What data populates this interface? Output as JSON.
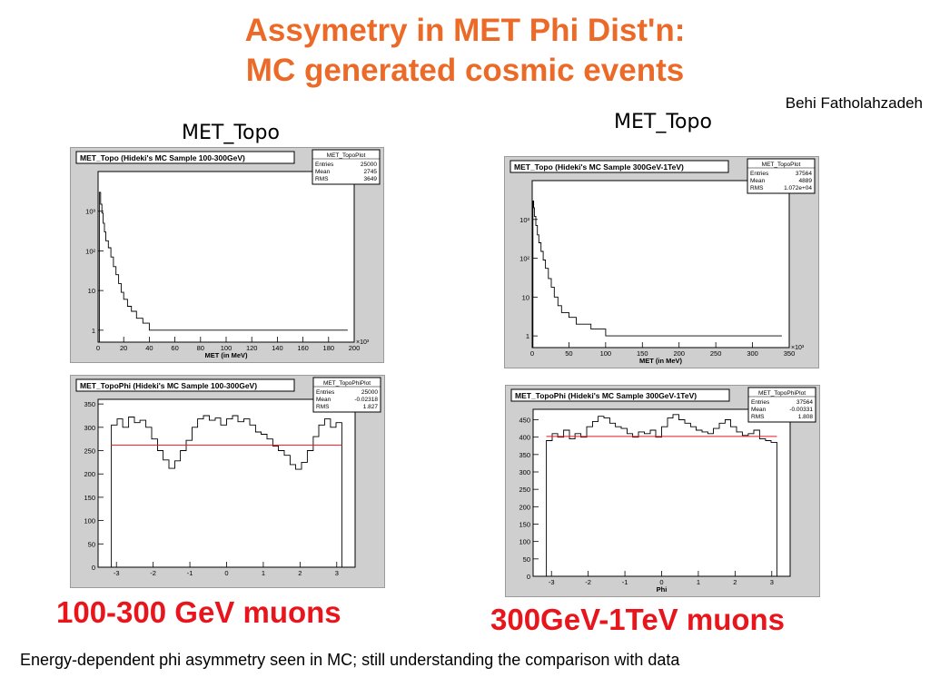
{
  "slide": {
    "title_line1": "Assymetry in MET Phi Dist'n:",
    "title_line2": "MC generated cosmic events",
    "author": "Behi Fatholahzadeh",
    "panel_left_label": "MET_Topo",
    "panel_right_label": "MET_Topo",
    "caption_left": "100-300 GeV muons",
    "caption_right": "300GeV-1TeV muons",
    "footer": "Energy-dependent phi asymmetry seen in MC; still understanding the comparison with data"
  },
  "colors": {
    "title": "#ec6a28",
    "caption": "#e8161c",
    "fit_line": "#e8161c",
    "frame_bg": "#cfcfcf",
    "plot_bg": "#ffffff"
  },
  "chart_data": [
    {
      "id": "met1",
      "type": "line",
      "title": "MET_Topo (Hideki's MC Sample 100-300GeV)",
      "stats_title": "MET_TopoPlot",
      "stats": [
        [
          "Entries",
          "25000"
        ],
        [
          "Mean",
          "2745"
        ],
        [
          "RMS",
          "3649"
        ]
      ],
      "xlabel": "MET (in MeV)",
      "x_multiplier": "×10³",
      "xlim": [
        0,
        200
      ],
      "ylog": true,
      "ylim": [
        0.5,
        10000
      ],
      "xticks": [
        0,
        20,
        40,
        60,
        80,
        100,
        120,
        140,
        160,
        180,
        200
      ],
      "yticks": [
        {
          "v": 1,
          "label": "1"
        },
        {
          "v": 10,
          "label": "10"
        },
        {
          "v": 100,
          "label": "10²"
        },
        {
          "v": 1000,
          "label": "10³"
        }
      ],
      "x": [
        1,
        2,
        3,
        4,
        5,
        6,
        8,
        10,
        12,
        14,
        16,
        18,
        20,
        23,
        26,
        30,
        35,
        40,
        50,
        60,
        70,
        80,
        100,
        120,
        140,
        160,
        180,
        195
      ],
      "y": [
        3000,
        1500,
        900,
        500,
        300,
        180,
        120,
        70,
        40,
        25,
        15,
        9,
        6,
        4,
        3,
        2,
        1.5,
        1,
        1,
        1,
        1,
        1,
        1,
        1,
        1,
        1,
        1,
        1
      ]
    },
    {
      "id": "met2",
      "type": "line",
      "title": "MET_Topo (Hideki's MC Sample 300GeV-1TeV)",
      "stats_title": "MET_TopoPlot",
      "stats": [
        [
          "Entries",
          "37564"
        ],
        [
          "Mean",
          "4889"
        ],
        [
          "RMS",
          "1.072e+04"
        ]
      ],
      "xlabel": "MET (in MeV)",
      "x_multiplier": "×10³",
      "xlim": [
        0,
        350
      ],
      "ylog": true,
      "ylim": [
        0.5,
        10000
      ],
      "xticks": [
        0,
        50,
        100,
        150,
        200,
        250,
        300,
        350
      ],
      "yticks": [
        {
          "v": 1,
          "label": "1"
        },
        {
          "v": 10,
          "label": "10"
        },
        {
          "v": 100,
          "label": "10²"
        },
        {
          "v": 1000,
          "label": "10³"
        }
      ],
      "x": [
        1,
        2,
        3,
        5,
        7,
        9,
        12,
        15,
        18,
        22,
        26,
        30,
        35,
        40,
        50,
        60,
        80,
        100,
        130,
        160,
        200,
        250,
        300,
        340
      ],
      "y": [
        3000,
        2000,
        1200,
        700,
        400,
        250,
        150,
        90,
        55,
        30,
        18,
        10,
        6,
        4,
        3,
        2,
        1.5,
        1,
        1,
        1,
        1,
        1,
        1,
        1
      ]
    },
    {
      "id": "phi1",
      "type": "line",
      "title": "MET_TopoPhi (Hideki's MC Sample 100-300GeV)",
      "stats_title": "MET_TopoPhiPlot",
      "stats": [
        [
          "Entries",
          "25000"
        ],
        [
          "Mean",
          "-0.02318"
        ],
        [
          "RMS",
          "1.827"
        ]
      ],
      "xlabel": "",
      "xlim": [
        -3.5,
        3.5
      ],
      "ylim": [
        0,
        360
      ],
      "xticks": [
        -3,
        -2,
        -1,
        0,
        1,
        2,
        3
      ],
      "yticks": [
        {
          "v": 0,
          "label": "0"
        },
        {
          "v": 50,
          "label": "50"
        },
        {
          "v": 100,
          "label": "100"
        },
        {
          "v": 150,
          "label": "150"
        },
        {
          "v": 200,
          "label": "200"
        },
        {
          "v": 250,
          "label": "250"
        },
        {
          "v": 300,
          "label": "300"
        },
        {
          "v": 350,
          "label": "350"
        }
      ],
      "fit": 262,
      "x": [
        -3.14,
        -2.98,
        -2.83,
        -2.67,
        -2.51,
        -2.36,
        -2.2,
        -2.04,
        -1.88,
        -1.73,
        -1.57,
        -1.41,
        -1.26,
        -1.1,
        -0.94,
        -0.79,
        -0.63,
        -0.47,
        -0.31,
        -0.16,
        0,
        0.16,
        0.31,
        0.47,
        0.63,
        0.79,
        0.94,
        1.1,
        1.26,
        1.41,
        1.57,
        1.73,
        1.88,
        2.04,
        2.2,
        2.36,
        2.51,
        2.67,
        2.83,
        2.98,
        3.14
      ],
      "y": [
        305,
        318,
        300,
        322,
        310,
        315,
        300,
        275,
        250,
        230,
        212,
        228,
        250,
        272,
        300,
        318,
        325,
        315,
        320,
        305,
        318,
        325,
        312,
        318,
        305,
        290,
        285,
        275,
        260,
        250,
        240,
        220,
        210,
        225,
        250,
        280,
        305,
        318,
        300,
        310,
        0
      ]
    },
    {
      "id": "phi2",
      "type": "line",
      "title": "MET_TopoPhi (Hideki's MC Sample 300GeV-1TeV)",
      "stats_title": "MET_TopoPhiPlot",
      "stats": [
        [
          "Entries",
          "37564"
        ],
        [
          "Mean",
          "-0.00331"
        ],
        [
          "RMS",
          "1.808"
        ]
      ],
      "xlabel": "Phi",
      "xlim": [
        -3.5,
        3.5
      ],
      "ylim": [
        0,
        480
      ],
      "xticks": [
        -3,
        -2,
        -1,
        0,
        1,
        2,
        3
      ],
      "yticks": [
        {
          "v": 0,
          "label": "0"
        },
        {
          "v": 50,
          "label": "50"
        },
        {
          "v": 100,
          "label": "100"
        },
        {
          "v": 150,
          "label": "150"
        },
        {
          "v": 200,
          "label": "200"
        },
        {
          "v": 250,
          "label": "250"
        },
        {
          "v": 300,
          "label": "300"
        },
        {
          "v": 350,
          "label": "350"
        },
        {
          "v": 400,
          "label": "400"
        },
        {
          "v": 450,
          "label": "450"
        }
      ],
      "fit": 402,
      "x": [
        -3.14,
        -2.98,
        -2.83,
        -2.67,
        -2.51,
        -2.36,
        -2.2,
        -2.04,
        -1.88,
        -1.73,
        -1.57,
        -1.41,
        -1.26,
        -1.1,
        -0.94,
        -0.79,
        -0.63,
        -0.47,
        -0.31,
        -0.16,
        0,
        0.16,
        0.31,
        0.47,
        0.63,
        0.79,
        0.94,
        1.1,
        1.26,
        1.41,
        1.57,
        1.73,
        1.88,
        2.04,
        2.2,
        2.36,
        2.51,
        2.67,
        2.83,
        2.98,
        3.14
      ],
      "y": [
        390,
        410,
        400,
        420,
        395,
        410,
        400,
        430,
        445,
        460,
        455,
        440,
        430,
        425,
        410,
        400,
        415,
        410,
        420,
        400,
        430,
        455,
        465,
        450,
        440,
        430,
        420,
        415,
        410,
        425,
        440,
        450,
        430,
        415,
        405,
        410,
        420,
        395,
        390,
        385,
        0
      ]
    }
  ]
}
